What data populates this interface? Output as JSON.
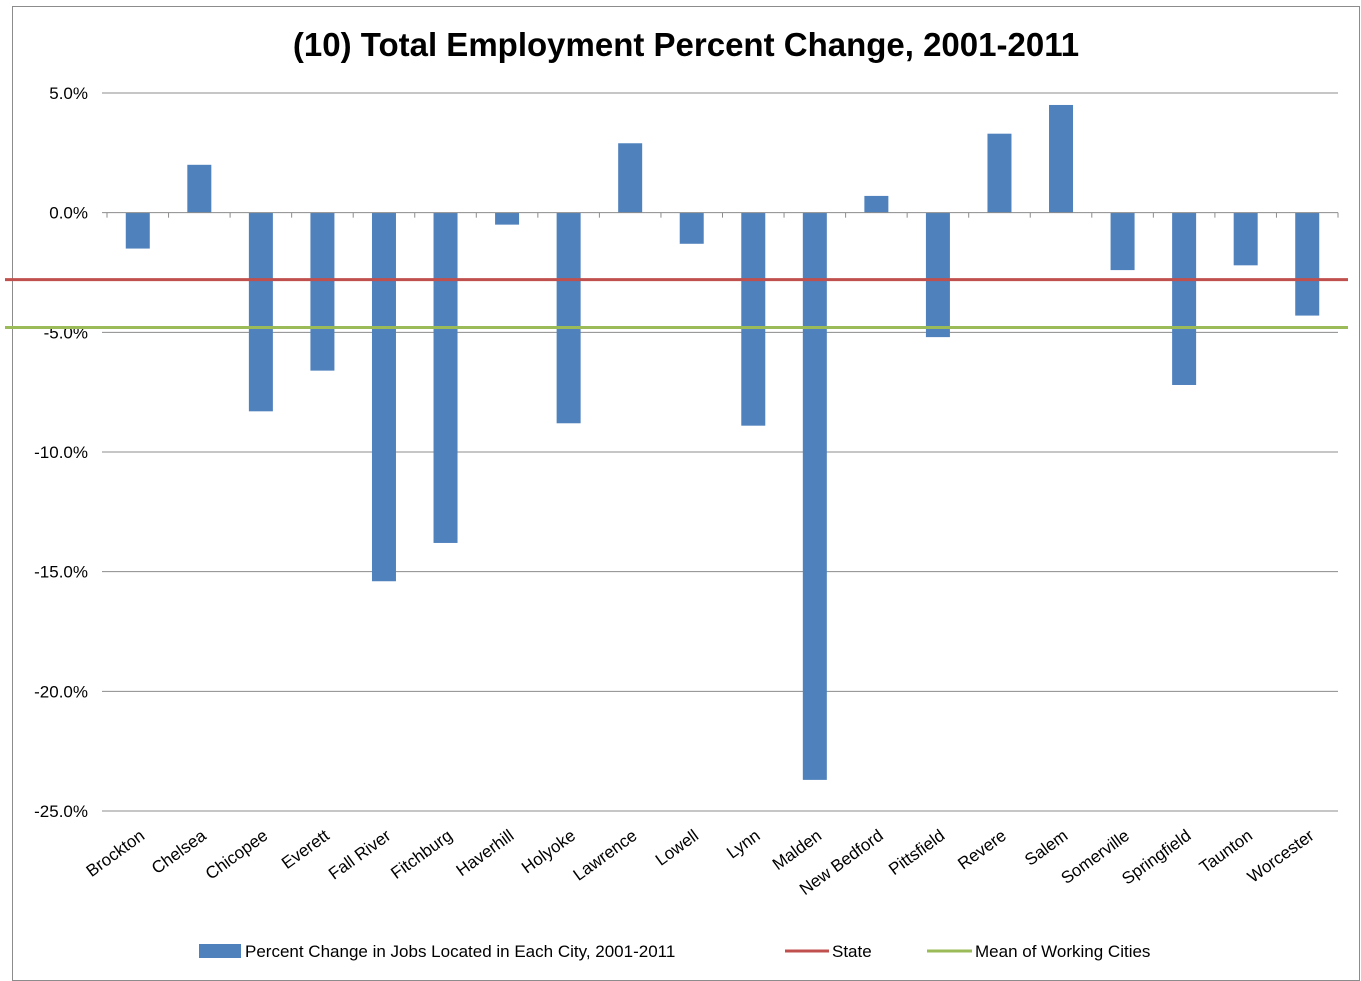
{
  "chart_data": {
    "type": "bar",
    "title": "(10) Total Employment Percent Change, 2001-2011",
    "xlabel": "",
    "ylabel": "",
    "ylim": [
      -25,
      5
    ],
    "yticks": [
      5,
      0,
      -5,
      -10,
      -15,
      -20,
      -25
    ],
    "ytick_labels": [
      "5.0%",
      "0.0%",
      "-5.0%",
      "-10.0%",
      "-15.0%",
      "-20.0%",
      "-25.0%"
    ],
    "grid": true,
    "legend_position": "bottom",
    "categories": [
      "Brockton",
      "Chelsea",
      "Chicopee",
      "Everett",
      "Fall River",
      "Fitchburg",
      "Haverhill",
      "Holyoke",
      "Lawrence",
      "Lowell",
      "Lynn",
      "Malden",
      "New Bedford",
      "Pittsfield",
      "Revere",
      "Salem",
      "Somerville",
      "Springfield",
      "Taunton",
      "Worcester"
    ],
    "series": [
      {
        "name": "Percent Change in Jobs Located in Each City, 2001-2011",
        "color": "#4f81bd",
        "values": [
          -1.5,
          2.0,
          -8.3,
          -6.6,
          -15.4,
          -13.8,
          -0.5,
          -8.8,
          2.9,
          -1.3,
          -8.9,
          -23.7,
          0.7,
          -5.2,
          3.3,
          4.5,
          -2.4,
          -7.2,
          -2.2,
          -4.3
        ]
      }
    ],
    "reference_lines": [
      {
        "name": "State",
        "value": -2.8,
        "color": "#c0504d"
      },
      {
        "name": "Mean of Working Cities",
        "value": -4.8,
        "color": "#9bbb59"
      }
    ]
  }
}
